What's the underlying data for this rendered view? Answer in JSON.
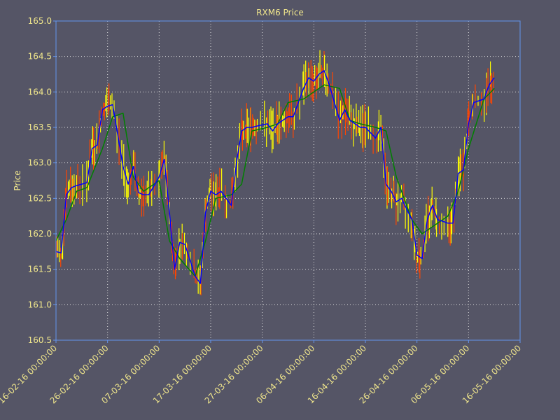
{
  "chart_data": {
    "type": "line",
    "title": "RXM6 Price",
    "xlabel": "",
    "ylabel": "Price",
    "ylim": [
      160.5,
      165.0
    ],
    "xlim": [
      "2016-02-16",
      "2016-05-16"
    ],
    "yticks": [
      "160.5",
      "161.0",
      "161.5",
      "162.0",
      "162.5",
      "163.0",
      "163.5",
      "164.0",
      "164.5",
      "165.0"
    ],
    "xticks": [
      "16-02-16 00:00:00",
      "26-02-16 00:00:00",
      "07-03-16 00:00:00",
      "17-03-16 00:00:00",
      "27-03-16 00:00:00",
      "06-04-16 00:00:00",
      "16-04-16 00:00:00",
      "26-04-16 00:00:00",
      "06-05-16 00:00:00",
      "16-05-16 00:00:00"
    ],
    "grid": true,
    "colors": {
      "background": "#555566",
      "text": "#f0e68c",
      "axis": "#6495ed",
      "grid": "#dddddd",
      "blue": "#0000ff",
      "green": "#008000",
      "up": "#ffff00",
      "down": "#ff4500"
    },
    "series": [
      {
        "color": "#0000ff",
        "x": [
          "2016-02-16",
          "2016-02-17",
          "2016-02-18",
          "2016-02-19",
          "2016-02-20",
          "2016-02-22",
          "2016-02-23",
          "2016-02-24",
          "2016-02-25",
          "2016-02-26",
          "2016-02-27",
          "2016-02-29",
          "2016-03-01",
          "2016-03-02",
          "2016-03-03",
          "2016-03-04",
          "2016-03-05",
          "2016-03-07",
          "2016-03-08",
          "2016-03-09",
          "2016-03-10",
          "2016-03-11",
          "2016-03-12",
          "2016-03-14",
          "2016-03-15",
          "2016-03-16",
          "2016-03-17",
          "2016-03-18",
          "2016-03-19",
          "2016-03-21",
          "2016-03-22",
          "2016-03-23",
          "2016-03-24",
          "2016-03-25",
          "2016-03-26",
          "2016-03-28",
          "2016-03-29",
          "2016-03-30",
          "2016-03-31",
          "2016-04-01",
          "2016-04-02",
          "2016-04-04",
          "2016-04-05",
          "2016-04-06",
          "2016-04-07",
          "2016-04-08",
          "2016-04-09",
          "2016-04-11",
          "2016-04-12",
          "2016-04-13",
          "2016-04-14",
          "2016-04-15",
          "2016-04-16",
          "2016-04-18",
          "2016-04-19",
          "2016-04-20",
          "2016-04-21",
          "2016-04-22",
          "2016-04-23",
          "2016-04-25",
          "2016-04-26",
          "2016-04-27",
          "2016-04-28",
          "2016-04-29",
          "2016-04-30",
          "2016-05-02",
          "2016-05-03",
          "2016-05-04",
          "2016-05-05",
          "2016-05-06",
          "2016-05-07",
          "2016-05-09",
          "2016-05-10",
          "2016-05-11"
        ],
        "values": [
          161.75,
          161.73,
          162.55,
          162.65,
          162.68,
          162.72,
          163.2,
          163.25,
          163.75,
          163.8,
          163.82,
          162.95,
          162.7,
          162.95,
          162.58,
          162.55,
          162.55,
          162.8,
          163.05,
          162.3,
          161.5,
          161.88,
          161.85,
          161.4,
          161.3,
          162.3,
          162.6,
          162.55,
          162.6,
          162.4,
          163.0,
          163.45,
          163.5,
          163.5,
          163.52,
          163.55,
          163.45,
          163.55,
          163.6,
          163.65,
          163.65,
          164.05,
          164.2,
          164.15,
          164.25,
          164.3,
          164.1,
          163.6,
          163.75,
          163.6,
          163.55,
          163.5,
          163.5,
          163.35,
          163.5,
          162.7,
          162.6,
          162.45,
          162.5,
          162.2,
          161.7,
          161.65,
          162.2,
          162.4,
          162.2,
          162.15,
          162.15,
          162.85,
          162.9,
          163.55,
          163.85,
          163.9,
          164.1,
          164.2
        ]
      },
      {
        "color": "#008000",
        "x": [
          "2016-02-16",
          "2016-02-18",
          "2016-02-20",
          "2016-02-22",
          "2016-02-25",
          "2016-02-27",
          "2016-02-29",
          "2016-03-02",
          "2016-03-04",
          "2016-03-07",
          "2016-03-09",
          "2016-03-11",
          "2016-03-14",
          "2016-03-16",
          "2016-03-18",
          "2016-03-21",
          "2016-03-23",
          "2016-03-25",
          "2016-03-28",
          "2016-03-30",
          "2016-04-01",
          "2016-04-04",
          "2016-04-06",
          "2016-04-08",
          "2016-04-11",
          "2016-04-13",
          "2016-04-15",
          "2016-04-18",
          "2016-04-20",
          "2016-04-22",
          "2016-04-25",
          "2016-04-27",
          "2016-04-29",
          "2016-05-02",
          "2016-05-04",
          "2016-05-06",
          "2016-05-09",
          "2016-05-11"
        ],
        "values": [
          161.9,
          162.2,
          162.6,
          162.65,
          163.2,
          163.65,
          163.7,
          162.8,
          162.6,
          162.75,
          161.9,
          161.65,
          161.4,
          161.9,
          162.5,
          162.55,
          162.7,
          163.45,
          163.5,
          163.55,
          163.85,
          163.9,
          164.0,
          164.1,
          164.05,
          163.6,
          163.55,
          163.5,
          163.45,
          162.8,
          162.2,
          162.0,
          162.1,
          162.25,
          162.6,
          163.2,
          163.9,
          164.05
        ]
      }
    ]
  }
}
